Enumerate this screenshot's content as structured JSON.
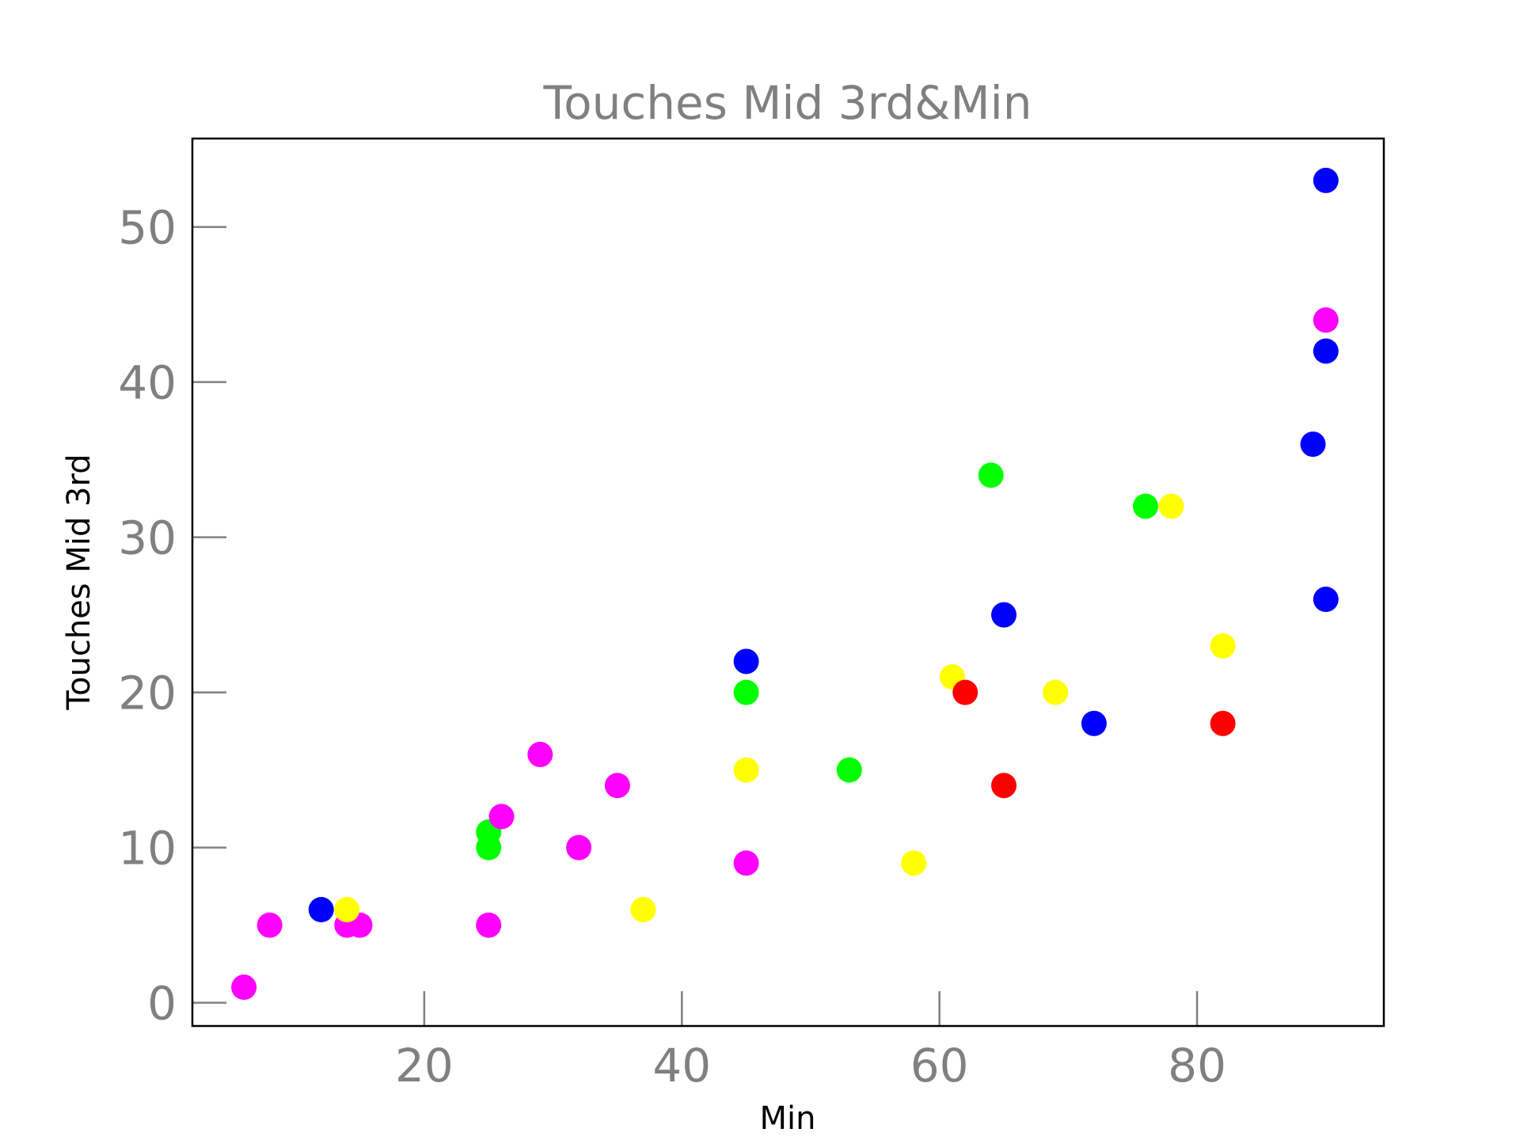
{
  "chart_data": {
    "type": "scatter",
    "title": "Touches Mid 3rd&Min",
    "xlabel": "Min",
    "ylabel": "Touches Mid 3rd",
    "xlim": [
      2,
      94.5
    ],
    "ylim": [
      -1.5,
      55.7
    ],
    "xticks": [
      20,
      40,
      60,
      80
    ],
    "yticks": [
      0,
      10,
      20,
      30,
      40,
      50
    ],
    "grid": false,
    "legend": "none",
    "colors": {
      "title": "#808080",
      "ticks": "#808080",
      "axis_label": "#000000",
      "frame": "#000000"
    },
    "points": [
      {
        "x": 6,
        "y": 1,
        "color": "#ff00ff"
      },
      {
        "x": 8,
        "y": 5,
        "color": "#ff00ff"
      },
      {
        "x": 12,
        "y": 6,
        "color": "#0000ff"
      },
      {
        "x": 14,
        "y": 5,
        "color": "#ff00ff"
      },
      {
        "x": 15,
        "y": 5,
        "color": "#ff00ff"
      },
      {
        "x": 14,
        "y": 6,
        "color": "#ffff00"
      },
      {
        "x": 25,
        "y": 11,
        "color": "#00ff00"
      },
      {
        "x": 25,
        "y": 10,
        "color": "#00ff00"
      },
      {
        "x": 25,
        "y": 5,
        "color": "#ff00ff"
      },
      {
        "x": 26,
        "y": 12,
        "color": "#ff00ff"
      },
      {
        "x": 29,
        "y": 16,
        "color": "#ff00ff"
      },
      {
        "x": 32,
        "y": 10,
        "color": "#ff00ff"
      },
      {
        "x": 35,
        "y": 14,
        "color": "#ff00ff"
      },
      {
        "x": 37,
        "y": 6,
        "color": "#ffff00"
      },
      {
        "x": 45,
        "y": 22,
        "color": "#0000ff"
      },
      {
        "x": 45,
        "y": 20,
        "color": "#00ff00"
      },
      {
        "x": 45,
        "y": 15,
        "color": "#ffff00"
      },
      {
        "x": 45,
        "y": 9,
        "color": "#ff00ff"
      },
      {
        "x": 53,
        "y": 15,
        "color": "#00ff00"
      },
      {
        "x": 58,
        "y": 9,
        "color": "#ffff00"
      },
      {
        "x": 61,
        "y": 21,
        "color": "#ffff00"
      },
      {
        "x": 62,
        "y": 20,
        "color": "#ff0000"
      },
      {
        "x": 64,
        "y": 34,
        "color": "#00ff00"
      },
      {
        "x": 65,
        "y": 25,
        "color": "#0000ff"
      },
      {
        "x": 65,
        "y": 14,
        "color": "#ff0000"
      },
      {
        "x": 69,
        "y": 20,
        "color": "#ffff00"
      },
      {
        "x": 72,
        "y": 18,
        "color": "#0000ff"
      },
      {
        "x": 76,
        "y": 32,
        "color": "#00ff00"
      },
      {
        "x": 78,
        "y": 32,
        "color": "#ffff00"
      },
      {
        "x": 82,
        "y": 23,
        "color": "#ffff00"
      },
      {
        "x": 82,
        "y": 18,
        "color": "#ff0000"
      },
      {
        "x": 89,
        "y": 36,
        "color": "#0000ff"
      },
      {
        "x": 90,
        "y": 53,
        "color": "#0000ff"
      },
      {
        "x": 90,
        "y": 44,
        "color": "#ff00ff"
      },
      {
        "x": 90,
        "y": 42,
        "color": "#0000ff"
      },
      {
        "x": 90,
        "y": 26,
        "color": "#0000ff"
      }
    ]
  }
}
